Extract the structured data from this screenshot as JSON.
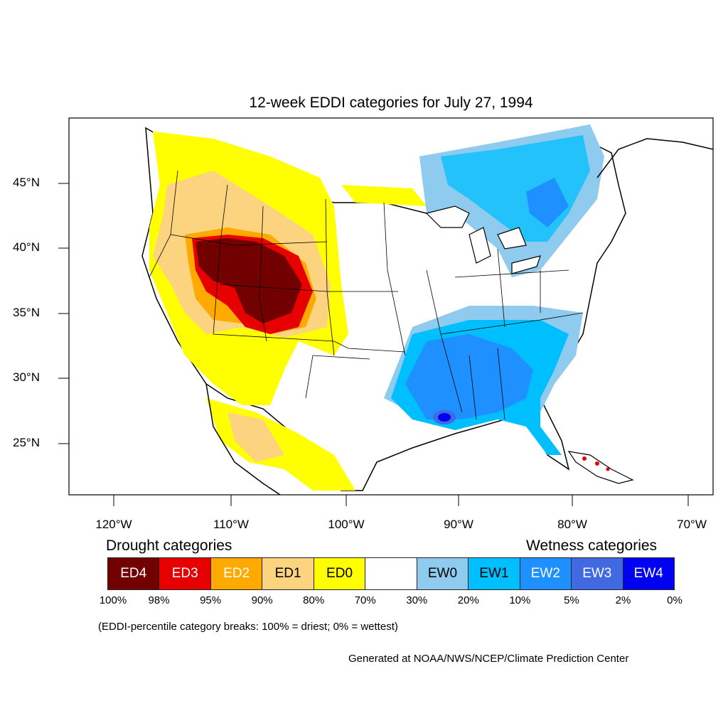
{
  "title": "12-week EDDI categories for July 27, 1994",
  "map": {
    "lat_labels": [
      "45°N",
      "40°N",
      "35°N",
      "30°N",
      "25°N"
    ],
    "lon_labels": [
      "120°W",
      "110°W",
      "100°W",
      "90°W",
      "80°W",
      "70°W"
    ]
  },
  "legend": {
    "drought_heading": "Drought categories",
    "wetness_heading": "Wetness categories",
    "categories": [
      {
        "label": "ED4",
        "color": "#730000"
      },
      {
        "label": "ED3",
        "color": "#e60000"
      },
      {
        "label": "ED2",
        "color": "#ffaa00"
      },
      {
        "label": "ED1",
        "color": "#fcd37f"
      },
      {
        "label": "ED0",
        "color": "#ffff00"
      },
      {
        "label": "",
        "color": "#ffffff"
      },
      {
        "label": "EW0",
        "color": "#8ecbee"
      },
      {
        "label": "EW1",
        "color": "#00bfff"
      },
      {
        "label": "EW2",
        "color": "#1e90ff"
      },
      {
        "label": "EW3",
        "color": "#4169e1"
      },
      {
        "label": "EW4",
        "color": "#0000f2"
      }
    ],
    "percentiles": [
      "100%",
      "98%",
      "95%",
      "90%",
      "80%",
      "70%",
      "30%",
      "20%",
      "10%",
      "5%",
      "2%",
      "0%"
    ]
  },
  "note": "(EDDI-percentile category breaks: 100% = driest; 0% = wettest)",
  "credit": "Generated at NOAA/NWS/NCEP/Climate Prediction Center"
}
